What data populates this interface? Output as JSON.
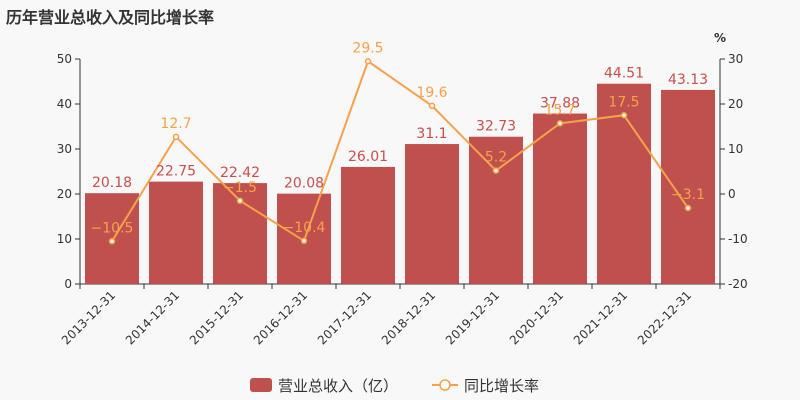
{
  "chart_data": {
    "type": "bar",
    "title": "历年营业总收入及同比增长率",
    "categories": [
      "2013-12-31",
      "2014-12-31",
      "2015-12-31",
      "2016-12-31",
      "2017-12-31",
      "2018-12-31",
      "2019-12-31",
      "2020-12-31",
      "2021-12-31",
      "2022-12-31"
    ],
    "series": [
      {
        "name": "营业总收入（亿）",
        "type": "bar",
        "axis": "left",
        "color": "#c0504d",
        "values": [
          20.18,
          22.75,
          22.42,
          20.08,
          26.01,
          31.1,
          32.73,
          37.88,
          44.51,
          43.13
        ],
        "labels": [
          "20.18",
          "22.75",
          "22.42",
          "20.08",
          "26.01",
          "31.1",
          "32.73",
          "37.88",
          "44.51",
          "43.13"
        ]
      },
      {
        "name": "同比增长率",
        "type": "line",
        "axis": "right",
        "color": "#f5a24a",
        "values": [
          -10.5,
          12.7,
          -1.5,
          -10.4,
          29.5,
          19.6,
          5.2,
          15.7,
          17.5,
          -3.1
        ],
        "labels": [
          "-10.5",
          "12.7",
          "-1.5",
          "-10.4",
          "29.5",
          "19.6",
          "5.2",
          "15.7",
          "17.5",
          "-3.1"
        ]
      }
    ],
    "y_left": {
      "min": 0,
      "max": 50,
      "ticks": [
        "0",
        "10",
        "20",
        "30",
        "40",
        "50"
      ]
    },
    "y_right": {
      "min": -20,
      "max": 30,
      "ticks": [
        "-20",
        "-10",
        "0",
        "10",
        "20",
        "30"
      ],
      "unit": "%"
    },
    "legend": "bottom-center",
    "grid": false
  }
}
